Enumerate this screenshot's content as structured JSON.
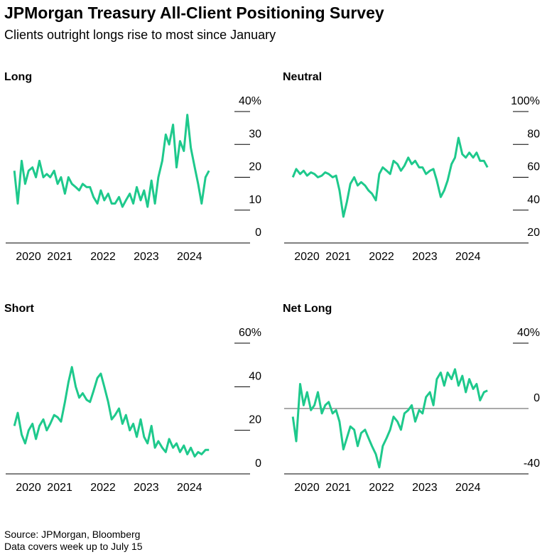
{
  "title": "JPMorgan Treasury All-Client Positioning Survey",
  "subtitle": "Clients outright longs rise to most since January",
  "source": "Source: JPMorgan, Bloomberg",
  "note": "Data covers week up to July 15",
  "chart_data": [
    {
      "type": "line",
      "title": "Long",
      "color": "#1ec98c",
      "x": [
        2019.95,
        2020.03,
        2020.12,
        2020.2,
        2020.28,
        2020.37,
        2020.45,
        2020.53,
        2020.62,
        2020.7,
        2020.78,
        2020.87,
        2020.95,
        2021.03,
        2021.12,
        2021.2,
        2021.28,
        2021.37,
        2021.45,
        2021.53,
        2021.62,
        2021.7,
        2021.78,
        2021.87,
        2021.95,
        2022.03,
        2022.12,
        2022.2,
        2022.28,
        2022.37,
        2022.45,
        2022.53,
        2022.62,
        2022.7,
        2022.78,
        2022.87,
        2022.95,
        2023.03,
        2023.12,
        2023.2,
        2023.28,
        2023.37,
        2023.45,
        2023.53,
        2023.62,
        2023.7,
        2023.78,
        2023.87,
        2023.95,
        2024.03,
        2024.12,
        2024.2,
        2024.28,
        2024.37,
        2024.45
      ],
      "values": [
        22,
        12,
        25,
        18,
        22,
        23,
        20,
        25,
        20,
        21,
        20,
        22,
        18,
        20,
        15,
        20,
        18,
        17,
        16,
        18,
        17,
        17,
        14,
        12,
        16,
        13,
        15,
        12,
        12,
        14,
        11,
        13,
        15,
        12,
        17,
        13,
        16,
        11,
        19,
        12,
        20,
        25,
        33,
        30,
        36,
        23,
        31,
        28,
        39,
        29,
        23,
        18,
        12,
        20,
        22
      ],
      "xlim": [
        2019.75,
        2025.4
      ],
      "xticks": [
        2020,
        2021,
        2022,
        2023,
        2024
      ],
      "ylim": [
        0,
        40
      ],
      "yticks": [
        {
          "value": 40,
          "label": "40%"
        },
        30,
        20,
        10,
        0
      ]
    },
    {
      "type": "line",
      "title": "Neutral",
      "color": "#1ec98c",
      "x": [
        2019.95,
        2020.03,
        2020.12,
        2020.2,
        2020.28,
        2020.37,
        2020.45,
        2020.53,
        2020.62,
        2020.7,
        2020.78,
        2020.87,
        2020.95,
        2021.03,
        2021.12,
        2021.2,
        2021.28,
        2021.37,
        2021.45,
        2021.53,
        2021.62,
        2021.7,
        2021.78,
        2021.87,
        2021.95,
        2022.03,
        2022.12,
        2022.2,
        2022.28,
        2022.37,
        2022.45,
        2022.53,
        2022.62,
        2022.7,
        2022.78,
        2022.87,
        2022.95,
        2023.03,
        2023.12,
        2023.2,
        2023.28,
        2023.37,
        2023.45,
        2023.53,
        2023.62,
        2023.7,
        2023.78,
        2023.87,
        2023.95,
        2024.03,
        2024.12,
        2024.2,
        2024.28,
        2024.37,
        2024.45
      ],
      "values": [
        60,
        65,
        62,
        64,
        61,
        63,
        62,
        60,
        61,
        63,
        62,
        60,
        61,
        52,
        36,
        45,
        56,
        60,
        55,
        57,
        55,
        52,
        50,
        46,
        62,
        66,
        64,
        62,
        70,
        68,
        64,
        67,
        72,
        68,
        70,
        66,
        66,
        62,
        64,
        65,
        58,
        48,
        52,
        58,
        68,
        72,
        84,
        74,
        72,
        75,
        72,
        75,
        70,
        70,
        66
      ],
      "xlim": [
        2019.75,
        2025.4
      ],
      "xticks": [
        2020,
        2021,
        2022,
        2023,
        2024
      ],
      "ylim": [
        20,
        100
      ],
      "yticks": [
        {
          "value": 100,
          "label": "100%"
        },
        80,
        60,
        40,
        20
      ]
    },
    {
      "type": "line",
      "title": "Short",
      "color": "#1ec98c",
      "x": [
        2019.95,
        2020.03,
        2020.12,
        2020.2,
        2020.28,
        2020.37,
        2020.45,
        2020.53,
        2020.62,
        2020.7,
        2020.78,
        2020.87,
        2020.95,
        2021.03,
        2021.12,
        2021.2,
        2021.28,
        2021.37,
        2021.45,
        2021.53,
        2021.62,
        2021.7,
        2021.78,
        2021.87,
        2021.95,
        2022.03,
        2022.12,
        2022.2,
        2022.28,
        2022.37,
        2022.45,
        2022.53,
        2022.62,
        2022.7,
        2022.78,
        2022.87,
        2022.95,
        2023.03,
        2023.12,
        2023.2,
        2023.28,
        2023.37,
        2023.45,
        2023.53,
        2023.62,
        2023.7,
        2023.78,
        2023.87,
        2023.95,
        2024.03,
        2024.12,
        2024.2,
        2024.28,
        2024.37,
        2024.45
      ],
      "values": [
        22,
        28,
        18,
        14,
        20,
        23,
        16,
        22,
        25,
        20,
        23,
        27,
        26,
        24,
        33,
        42,
        49,
        40,
        35,
        37,
        34,
        33,
        38,
        44,
        46,
        40,
        33,
        25,
        27,
        30,
        23,
        27,
        20,
        23,
        17,
        25,
        17,
        14,
        22,
        12,
        15,
        12,
        10,
        16,
        12,
        14,
        10,
        13,
        9,
        12,
        8,
        10,
        9,
        11,
        11
      ],
      "xlim": [
        2019.75,
        2025.4
      ],
      "xticks": [
        2020,
        2021,
        2022,
        2023,
        2024
      ],
      "ylim": [
        0,
        60
      ],
      "yticks": [
        {
          "value": 60,
          "label": "60%"
        },
        40,
        20,
        0
      ]
    },
    {
      "type": "line",
      "title": "Net Long",
      "color": "#1ec98c",
      "zero_line": true,
      "x": [
        2019.95,
        2020.03,
        2020.12,
        2020.2,
        2020.28,
        2020.37,
        2020.45,
        2020.53,
        2020.62,
        2020.7,
        2020.78,
        2020.87,
        2020.95,
        2021.03,
        2021.12,
        2021.2,
        2021.28,
        2021.37,
        2021.45,
        2021.53,
        2021.62,
        2021.7,
        2021.78,
        2021.87,
        2021.95,
        2022.03,
        2022.12,
        2022.2,
        2022.28,
        2022.37,
        2022.45,
        2022.53,
        2022.62,
        2022.7,
        2022.78,
        2022.87,
        2022.95,
        2023.03,
        2023.12,
        2023.2,
        2023.28,
        2023.37,
        2023.45,
        2023.53,
        2023.62,
        2023.7,
        2023.78,
        2023.87,
        2023.95,
        2024.03,
        2024.12,
        2024.2,
        2024.28,
        2024.37,
        2024.45
      ],
      "values": [
        -5,
        -20,
        15,
        2,
        10,
        -1,
        2,
        10,
        -3,
        2,
        4,
        -3,
        -1,
        -8,
        -25,
        -18,
        -11,
        -13,
        -23,
        -15,
        -13,
        -18,
        -23,
        -28,
        -36,
        -23,
        -18,
        -13,
        -5,
        -8,
        -13,
        -3,
        -1,
        2,
        -8,
        -1,
        -3,
        7,
        10,
        2,
        18,
        22,
        14,
        22,
        18,
        24,
        14,
        20,
        10,
        18,
        12,
        15,
        5,
        10,
        11
      ],
      "xlim": [
        2019.75,
        2025.4
      ],
      "xticks": [
        2020,
        2021,
        2022,
        2023,
        2024
      ],
      "ylim": [
        -40,
        40
      ],
      "yticks": [
        {
          "value": 40,
          "label": "40%"
        },
        0,
        -40
      ]
    }
  ]
}
